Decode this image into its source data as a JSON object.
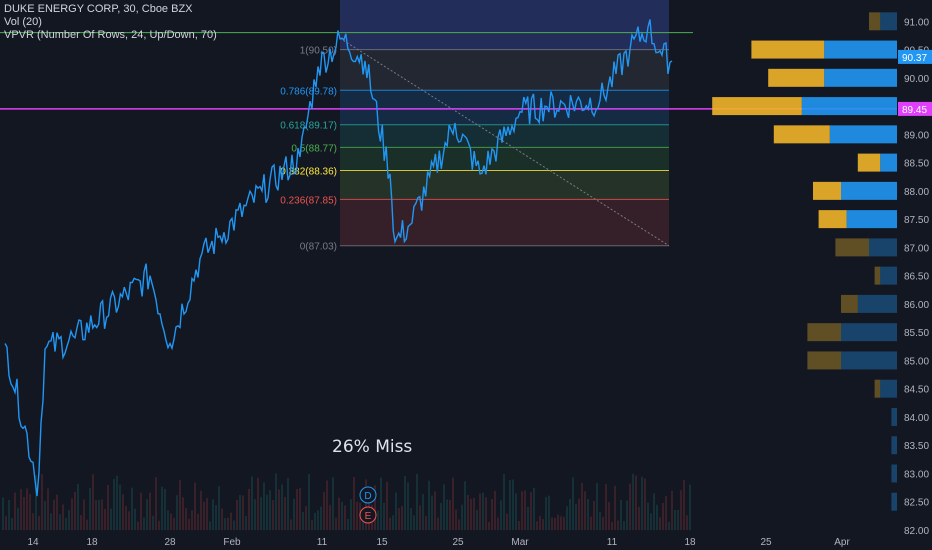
{
  "legend": {
    "symbol_line": "DUKE ENERGY CORP, 30, Cboe BZX",
    "volume_line": "Vol (20)",
    "vpvr_line": "VPVR (Number Of Rows, 24, Up/Down, 70)"
  },
  "annotation": "26% Miss",
  "event_markers": [
    "D",
    "E"
  ],
  "colors": {
    "background": "#131722",
    "price_line": "#2196f3",
    "green_line": "#4caf50",
    "magenta_line": "#e040fb",
    "vpvr_up": "#f0b429",
    "vpvr_down": "#2196f3",
    "axis_text": "#b2b5be"
  },
  "chart_data": {
    "type": "line",
    "title": "DUKE ENERGY CORP, 30, Cboe BZX",
    "ylim": [
      82.0,
      91.2
    ],
    "y_ticks": [
      "91.00",
      "90.50",
      "90.00",
      "89.50",
      "89.00",
      "88.50",
      "88.00",
      "87.50",
      "87.00",
      "86.50",
      "86.00",
      "85.50",
      "85.00",
      "84.50",
      "84.00",
      "83.50",
      "83.00",
      "82.50",
      "82.00"
    ],
    "x_ticks": [
      "14",
      "18",
      "28",
      "Feb",
      "11",
      "15",
      "25",
      "Mar",
      "11",
      "18",
      "25",
      "Apr"
    ],
    "grid": false,
    "price_series": {
      "name": "DUK",
      "x": [
        "Jan 11",
        "Jan 14",
        "Jan 15",
        "Jan 17",
        "Jan 22",
        "Jan 25",
        "Jan 29",
        "Jan 31",
        "Feb 1",
        "Feb 5",
        "Feb 8",
        "Feb 11",
        "Feb 12",
        "Feb 13",
        "Feb 15",
        "Feb 19",
        "Feb 20",
        "Feb 25",
        "Feb 26",
        "Mar 1",
        "Mar 5",
        "Mar 8",
        "Mar 12",
        "Mar 14",
        "Mar 15",
        "Mar 18"
      ],
      "y": [
        85.3,
        83.2,
        82.6,
        85.2,
        85.4,
        86.5,
        85.3,
        86.8,
        87.2,
        88.0,
        88.6,
        90.2,
        90.7,
        90.3,
        88.3,
        87.1,
        87.4,
        89.2,
        88.3,
        89.4,
        89.5,
        89.6,
        90.5,
        90.9,
        90.4,
        90.3
      ]
    },
    "last_price_label": "90.37",
    "horizontal_lines": [
      {
        "price": 90.8,
        "color": "#4caf50"
      },
      {
        "price": 89.45,
        "color": "#e040fb",
        "label": "89.45"
      }
    ],
    "fibonacci": {
      "levels": [
        {
          "ratio": "1",
          "price": 90.5,
          "label": "1(90.50)",
          "color": "#787b86"
        },
        {
          "ratio": "0.786",
          "price": 89.78,
          "label": "0.786(89.78)",
          "color": "#2196f3"
        },
        {
          "ratio": "0.618",
          "price": 89.17,
          "label": "0.618(89.17)",
          "color": "#26a69a"
        },
        {
          "ratio": "0.5",
          "price": 88.77,
          "label": "0.5(88.77)",
          "color": "#4caf50"
        },
        {
          "ratio": "0.382",
          "price": 88.36,
          "label": "0.382(88.36)",
          "color": "#ffeb3b"
        },
        {
          "ratio": "0.236",
          "price": 87.85,
          "label": "0.236(87.85)",
          "color": "#ef5350"
        },
        {
          "ratio": "0",
          "price": 87.03,
          "label": "0(87.03)",
          "color": "#787b86"
        }
      ]
    },
    "volume_profile": {
      "row_prices": [
        91.0,
        90.5,
        90.0,
        89.5,
        89.0,
        88.5,
        88.0,
        87.5,
        87.0,
        86.5,
        86.0,
        85.5,
        85.0,
        84.5,
        84.0,
        83.5,
        83.0,
        82.5
      ],
      "up": [
        2,
        13,
        10,
        16,
        10,
        4,
        5,
        5,
        6,
        1,
        3,
        6,
        6,
        1,
        0,
        0,
        0,
        0
      ],
      "down": [
        3,
        13,
        13,
        17,
        12,
        3,
        10,
        9,
        5,
        3,
        7,
        10,
        10,
        3,
        1,
        1,
        1,
        1
      ]
    }
  }
}
